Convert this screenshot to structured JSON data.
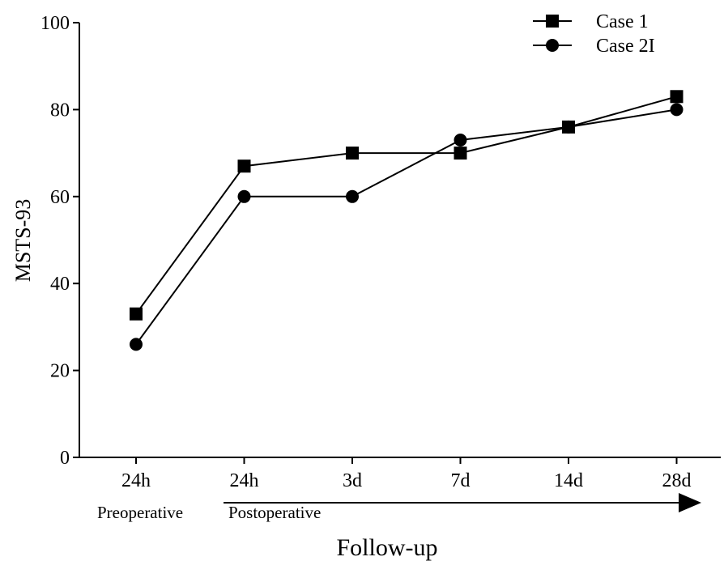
{
  "chart_data": {
    "type": "line",
    "xlabel": "Follow-up",
    "ylabel": "MSTS-93",
    "categories": [
      "24h",
      "24h",
      "3d",
      "7d",
      "14d",
      "28d"
    ],
    "ylim": [
      0,
      100
    ],
    "yticks": [
      0,
      20,
      40,
      60,
      80,
      100
    ],
    "series": [
      {
        "name": "Case 1",
        "marker": "square",
        "values": [
          33,
          67,
          70,
          70,
          76,
          83
        ]
      },
      {
        "name": "Case 2I",
        "marker": "circle",
        "values": [
          26,
          60,
          60,
          73,
          76,
          80
        ]
      }
    ],
    "phases": {
      "pre": "Preoperative",
      "post": "Postoperative"
    },
    "grid": false,
    "legend_position": "top-right",
    "colors": {
      "line": "#000000",
      "marker": "#000000"
    }
  }
}
